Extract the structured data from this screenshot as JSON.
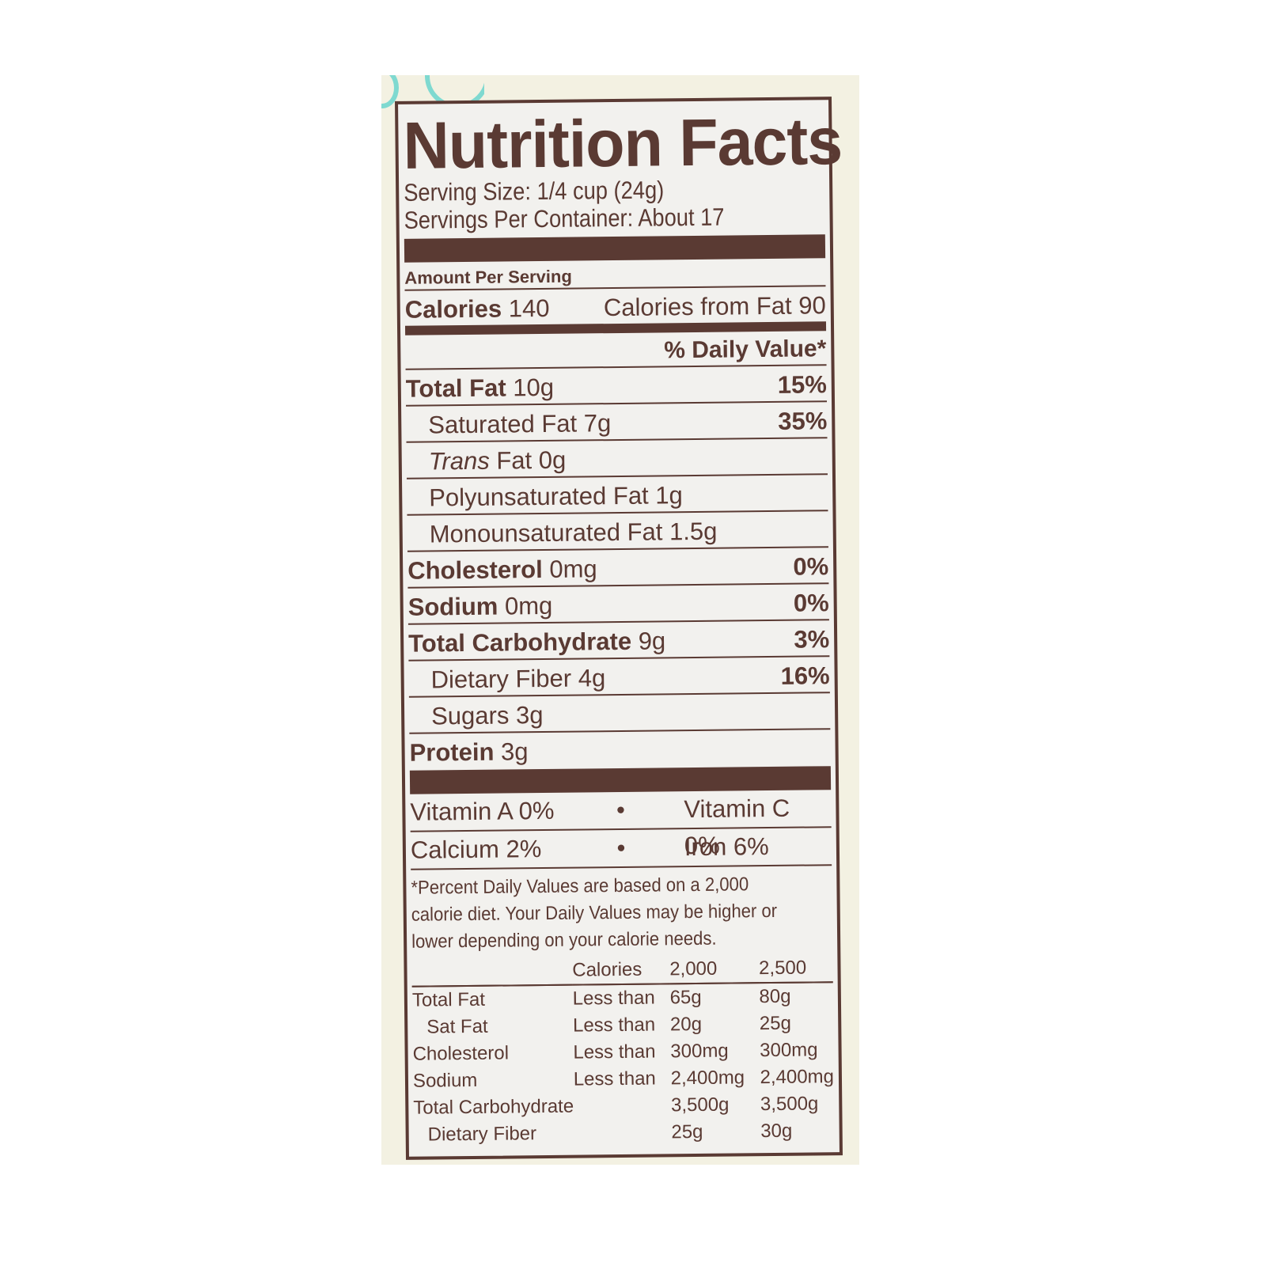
{
  "title": "Nutrition Facts",
  "serving_size": "Serving Size: 1/4 cup (24g)",
  "servings_per_container": "Servings Per Container: About 17",
  "amount_per_serving": "Amount Per Serving",
  "calories": {
    "label": "Calories",
    "value": "140",
    "from_fat": "Calories from Fat 90"
  },
  "daily_value_header": "% Daily Value*",
  "nutrients": [
    {
      "label": "Total Fat",
      "amount": "10g",
      "dv": "15%",
      "bold": true,
      "indent": false
    },
    {
      "label": "Saturated Fat",
      "amount": "7g",
      "dv": "35%",
      "bold": false,
      "indent": true
    },
    {
      "label": "Trans Fat",
      "amount": "0g",
      "dv": "",
      "bold": false,
      "indent": true
    },
    {
      "label": "Polyunsaturated Fat",
      "amount": "1g",
      "dv": "",
      "bold": false,
      "indent": true
    },
    {
      "label": "Monounsaturated Fat",
      "amount": "1.5g",
      "dv": "",
      "bold": false,
      "indent": true
    },
    {
      "label": "Cholesterol",
      "amount": "0mg",
      "dv": "0%",
      "bold": true,
      "indent": false
    },
    {
      "label": "Sodium",
      "amount": "0mg",
      "dv": "0%",
      "bold": true,
      "indent": false
    },
    {
      "label": "Total Carbohydrate",
      "amount": "9g",
      "dv": "3%",
      "bold": true,
      "indent": false
    },
    {
      "label": "Dietary Fiber",
      "amount": "4g",
      "dv": "16%",
      "bold": false,
      "indent": true
    },
    {
      "label": "Sugars",
      "amount": "3g",
      "dv": "",
      "bold": false,
      "indent": true
    },
    {
      "label": "Protein",
      "amount": "3g",
      "dv": "",
      "bold": true,
      "indent": false
    }
  ],
  "vitamins": [
    {
      "left": "Vitamin A 0%",
      "sep": "•",
      "right": "Vitamin C 0%"
    },
    {
      "left": "Calcium 2%",
      "sep": "•",
      "right": "Iron 6%"
    }
  ],
  "footnote": "*Percent Daily Values are based on a 2,000 calorie diet. Your Daily Values may be higher or lower depending on your calorie needs.",
  "reference_table": {
    "header": [
      "",
      "Calories",
      "2,000",
      "2,500"
    ],
    "rows": [
      [
        "Total Fat",
        "Less than",
        "65g",
        "80g"
      ],
      [
        "Sat Fat",
        "Less than",
        "20g",
        "25g"
      ],
      [
        "Cholesterol",
        "Less than",
        "300mg",
        "300mg"
      ],
      [
        "Sodium",
        "Less than",
        "2,400mg",
        "2,400mg"
      ],
      [
        "Total Carbohydrate",
        "",
        "3,500g",
        "3,500g"
      ],
      [
        "Dietary Fiber",
        "",
        "25g",
        "30g"
      ]
    ]
  },
  "colors": {
    "ink": "#5a3a33",
    "label_bg": "#f2f1ee",
    "package_bg": "#f3f1e2",
    "accent": "#7fd9d0"
  }
}
